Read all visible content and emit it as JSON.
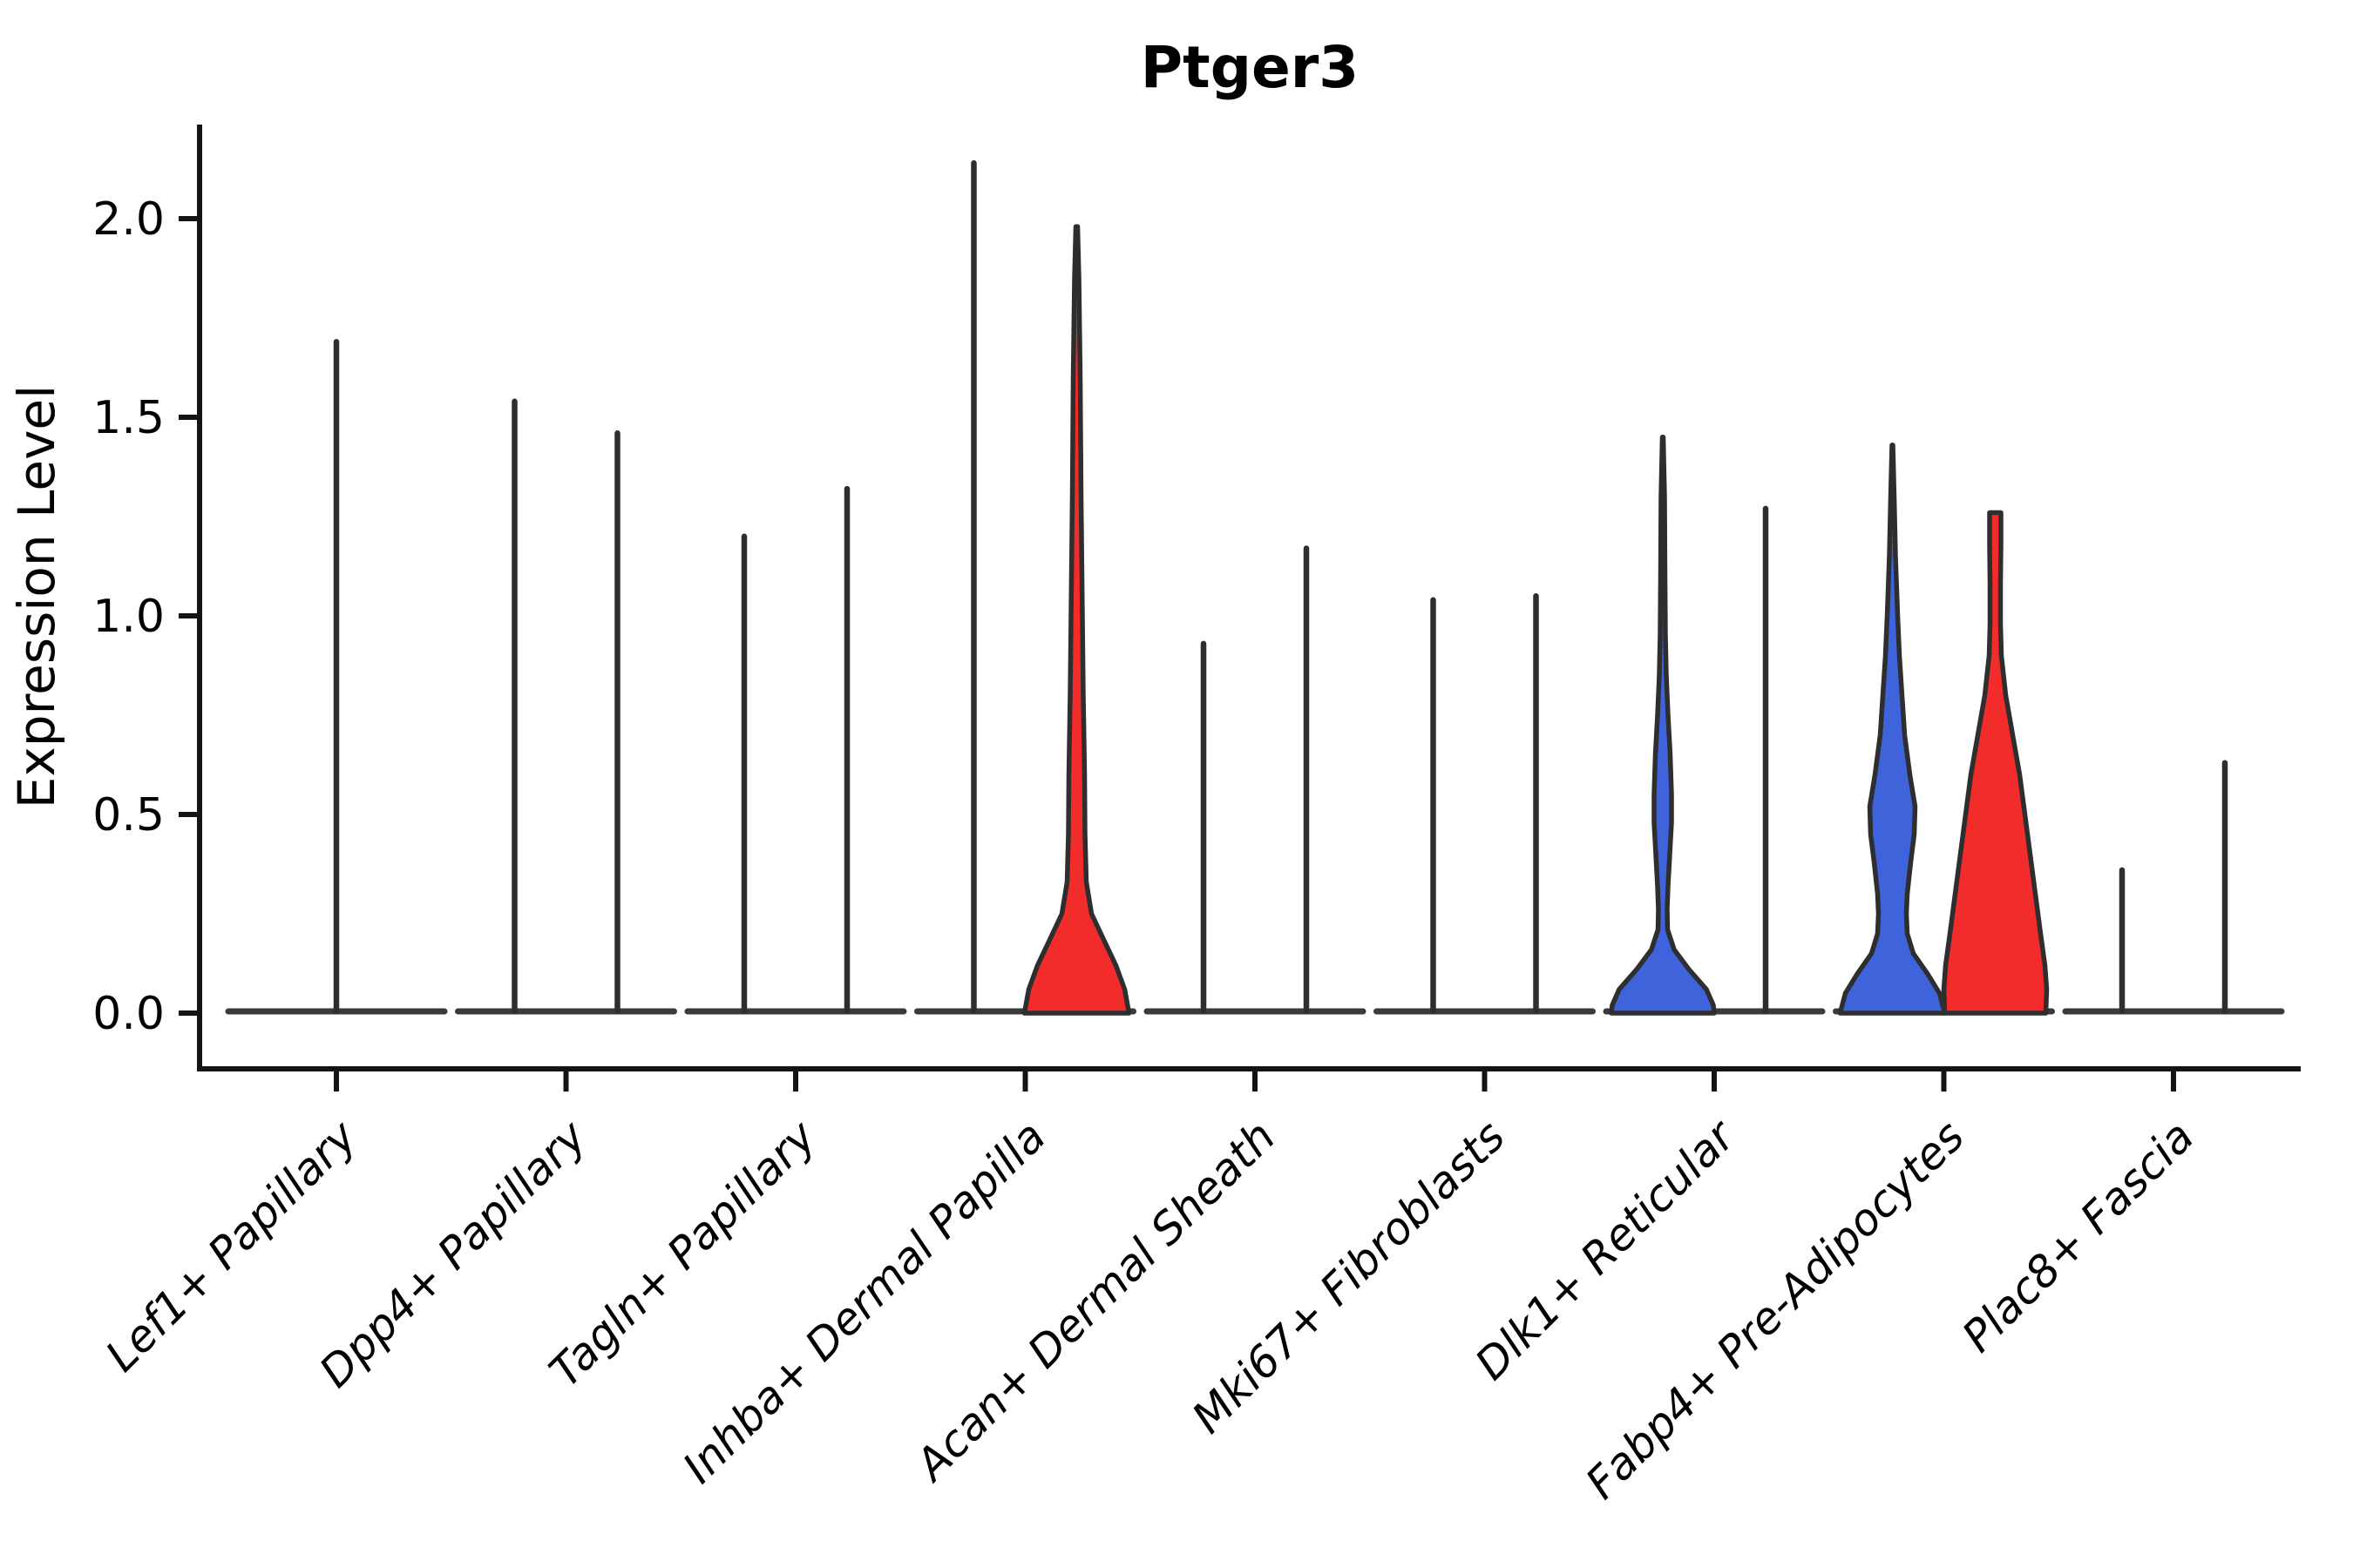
{
  "page": {
    "background": "#ffffff"
  },
  "chart_data": {
    "type": "violin",
    "title": "Ptger3",
    "ylabel": "Expression Level",
    "xlabel": "",
    "ylim": [
      -0.14,
      2.23
    ],
    "yticks": [
      0.0,
      0.5,
      1.0,
      1.5,
      2.0
    ],
    "ytick_labels": [
      "0.0",
      "0.5",
      "1.0",
      "1.5",
      "2.0"
    ],
    "grid": false,
    "legend": "none",
    "colors": {
      "red_fill": "#f22b2b",
      "blue_fill": "#3e63da",
      "outline": "#2e2e2e",
      "baseline": "#3a3a3a",
      "axis": "#141414",
      "text": "#000000"
    },
    "categories": [
      "Lef1+ Papillary",
      "Dpp4+ Papillary",
      "Tagln+ Papillary",
      "Inhba+ Dermal Papilla",
      "Acan+ Dermal Sheath",
      "Mki67+ Fibroblasts",
      "Dlk1+ Reticular",
      "Fabp4+ Pre-Adipocytes",
      "Plac8+ Fascia"
    ],
    "groups": [
      {
        "category": "Lef1+ Papillary",
        "violins": [
          {
            "pos": "center",
            "kind": "spike",
            "max": 1.69
          }
        ]
      },
      {
        "category": "Dpp4+ Papillary",
        "violins": [
          {
            "pos": "left",
            "kind": "spike",
            "max": 1.54
          },
          {
            "pos": "right",
            "kind": "spike",
            "max": 1.46
          }
        ]
      },
      {
        "category": "Tagln+ Papillary",
        "violins": [
          {
            "pos": "left",
            "kind": "spike",
            "max": 1.2
          },
          {
            "pos": "right",
            "kind": "spike",
            "max": 1.32
          }
        ]
      },
      {
        "category": "Inhba+ Dermal Papilla",
        "violins": [
          {
            "pos": "left",
            "kind": "spike",
            "max": 2.14
          },
          {
            "pos": "right",
            "kind": "shape",
            "color": "red",
            "max": 1.98,
            "profile": [
              [
                1.98,
                1
              ],
              [
                1.85,
                2.5
              ],
              [
                1.6,
                4
              ],
              [
                1.3,
                5
              ],
              [
                1.0,
                6.5
              ],
              [
                0.8,
                7.5
              ],
              [
                0.6,
                9
              ],
              [
                0.45,
                9.5
              ],
              [
                0.33,
                11
              ],
              [
                0.25,
                17
              ],
              [
                0.18,
                32
              ],
              [
                0.12,
                45
              ],
              [
                0.06,
                55
              ],
              [
                0.0,
                60
              ]
            ]
          }
        ]
      },
      {
        "category": "Acan+ Dermal Sheath",
        "violins": [
          {
            "pos": "left",
            "kind": "spike",
            "max": 0.93
          },
          {
            "pos": "right",
            "kind": "spike",
            "max": 1.17
          }
        ]
      },
      {
        "category": "Mki67+ Fibroblasts",
        "violins": [
          {
            "pos": "left",
            "kind": "spike",
            "max": 1.04
          },
          {
            "pos": "right",
            "kind": "spike",
            "max": 1.05
          }
        ]
      },
      {
        "category": "Dlk1+ Reticular",
        "violins": [
          {
            "pos": "left",
            "kind": "shape",
            "color": "blue",
            "max": 1.45,
            "profile": [
              [
                1.45,
                0.5
              ],
              [
                1.3,
                2
              ],
              [
                1.1,
                2.5
              ],
              [
                0.95,
                3
              ],
              [
                0.85,
                4
              ],
              [
                0.75,
                6
              ],
              [
                0.65,
                8.5
              ],
              [
                0.55,
                10
              ],
              [
                0.48,
                10
              ],
              [
                0.4,
                8
              ],
              [
                0.32,
                6
              ],
              [
                0.26,
                5
              ],
              [
                0.21,
                5.5
              ],
              [
                0.16,
                13
              ],
              [
                0.11,
                30
              ],
              [
                0.06,
                50
              ],
              [
                0.02,
                58
              ],
              [
                0.0,
                59
              ]
            ]
          },
          {
            "pos": "right",
            "kind": "spike",
            "max": 1.27
          }
        ]
      },
      {
        "category": "Fabp4+ Pre-Adipocytes",
        "violins": [
          {
            "pos": "left",
            "kind": "shape",
            "color": "blue",
            "max": 1.43,
            "profile": [
              [
                1.43,
                0.5
              ],
              [
                1.3,
                2
              ],
              [
                1.15,
                3.5
              ],
              [
                1.0,
                6
              ],
              [
                0.9,
                8
              ],
              [
                0.8,
                11
              ],
              [
                0.7,
                14
              ],
              [
                0.6,
                20
              ],
              [
                0.52,
                26
              ],
              [
                0.45,
                25
              ],
              [
                0.38,
                21
              ],
              [
                0.3,
                17
              ],
              [
                0.25,
                16
              ],
              [
                0.2,
                17
              ],
              [
                0.15,
                24
              ],
              [
                0.1,
                40
              ],
              [
                0.05,
                54
              ],
              [
                0.0,
                60
              ]
            ]
          },
          {
            "pos": "right",
            "kind": "shape",
            "color": "red",
            "max": 1.26,
            "flat_top": true,
            "profile": [
              [
                1.26,
                6.5
              ],
              [
                1.18,
                6.5
              ],
              [
                1.08,
                6
              ],
              [
                0.98,
                6
              ],
              [
                0.9,
                7
              ],
              [
                0.8,
                12
              ],
              [
                0.7,
                20
              ],
              [
                0.6,
                28
              ],
              [
                0.5,
                34
              ],
              [
                0.4,
                40
              ],
              [
                0.3,
                46
              ],
              [
                0.2,
                52
              ],
              [
                0.12,
                57
              ],
              [
                0.06,
                59
              ],
              [
                0.0,
                58
              ]
            ]
          }
        ]
      },
      {
        "category": "Plac8+ Fascia",
        "violins": [
          {
            "pos": "left",
            "kind": "spike",
            "max": 0.36
          },
          {
            "pos": "right",
            "kind": "spike",
            "max": 0.63
          }
        ]
      }
    ]
  }
}
